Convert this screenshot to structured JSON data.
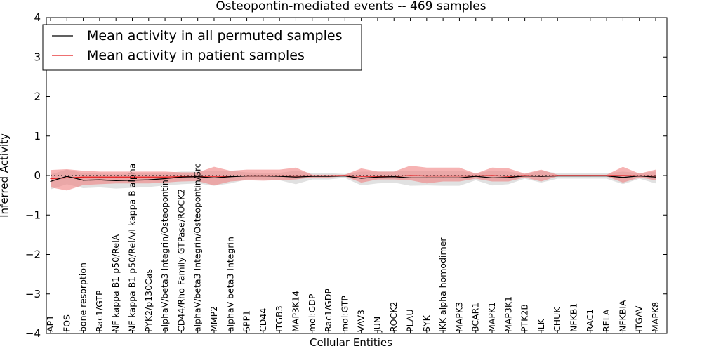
{
  "chart_data": {
    "type": "line",
    "title": "Osteopontin-mediated events -- 469 samples",
    "xlabel": "Cellular Entities",
    "ylabel": "Inferred Activity",
    "ylim": [
      -4,
      4
    ],
    "yticks": [
      -4,
      -3,
      -2,
      -1,
      0,
      1,
      2,
      3,
      4
    ],
    "ytick_labels": [
      "−4",
      "−3",
      "−2",
      "−1",
      "0",
      "1",
      "2",
      "3",
      "4"
    ],
    "grid": false,
    "legend_position": "top-left",
    "reference_line": 0,
    "categories": [
      "AP1",
      "FOS",
      "bone resorption",
      "Rac1/GTP",
      "NF kappa B1 p50/RelA",
      "NF kappa B1 p50/RelA/I kappa B alpha",
      "PYK2/p130Cas",
      "alphaV/beta3 Integrin/Osteopontin",
      "CD44/Rho Family GTPase/ROCK2",
      "alphaV/beta3 Integrin/Osteopontin/Src",
      "MMP2",
      "alphaV beta3 Integrin",
      "SPP1",
      "CD44",
      "ITGB3",
      "MAP3K14",
      "mol:GDP",
      "Rac1/GDP",
      "mol:GTP",
      "VAV3",
      "JUN",
      "ROCK2",
      "PLAU",
      "SYK",
      "IKK alpha homodimer",
      "MAPK3",
      "BCAR1",
      "MAPK1",
      "MAP3K1",
      "PTK2B",
      "ILK",
      "CHUK",
      "NFKB1",
      "RAC1",
      "RELA",
      "NFKBIA",
      "ITGAV",
      "MAPK8"
    ],
    "series": [
      {
        "name": "Mean activity in all permuted samples",
        "color": "#000000",
        "band_color": "#c8c8c8",
        "values": [
          -0.15,
          -0.02,
          -0.12,
          -0.11,
          -0.13,
          -0.12,
          -0.11,
          -0.08,
          -0.04,
          -0.03,
          -0.06,
          -0.03,
          -0.01,
          -0.01,
          -0.02,
          -0.04,
          -0.02,
          -0.02,
          -0.01,
          -0.07,
          -0.04,
          -0.03,
          -0.06,
          -0.06,
          -0.06,
          -0.06,
          -0.02,
          -0.06,
          -0.05,
          -0.01,
          -0.02,
          -0.01,
          -0.01,
          -0.01,
          -0.01,
          -0.05,
          -0.01,
          -0.04
        ],
        "lower": [
          -0.35,
          -0.22,
          -0.32,
          -0.3,
          -0.33,
          -0.31,
          -0.29,
          -0.25,
          -0.22,
          -0.2,
          -0.26,
          -0.2,
          -0.1,
          -0.1,
          -0.12,
          -0.22,
          -0.1,
          -0.1,
          -0.06,
          -0.25,
          -0.2,
          -0.18,
          -0.26,
          -0.25,
          -0.26,
          -0.26,
          -0.12,
          -0.25,
          -0.22,
          -0.08,
          -0.18,
          -0.08,
          -0.08,
          -0.08,
          -0.08,
          -0.22,
          -0.08,
          -0.2
        ],
        "upper": [
          0.03,
          0.15,
          0.06,
          0.05,
          0.04,
          0.05,
          0.06,
          0.07,
          0.1,
          0.1,
          0.12,
          0.12,
          0.08,
          0.07,
          0.07,
          0.12,
          0.06,
          0.06,
          0.04,
          0.1,
          0.1,
          0.1,
          0.12,
          0.12,
          0.12,
          0.12,
          0.06,
          0.12,
          0.1,
          0.04,
          0.12,
          0.06,
          0.06,
          0.06,
          0.06,
          0.1,
          0.06,
          0.1
        ]
      },
      {
        "name": "Mean activity in patient samples",
        "color": "#e41a1c",
        "band_color": "#f08080",
        "values": [
          -0.08,
          -0.06,
          -0.04,
          -0.04,
          -0.04,
          -0.04,
          -0.04,
          -0.04,
          -0.03,
          -0.02,
          -0.02,
          -0.02,
          -0.01,
          -0.01,
          -0.01,
          -0.01,
          -0.01,
          -0.01,
          0.0,
          -0.02,
          -0.02,
          -0.02,
          0.0,
          -0.01,
          -0.01,
          -0.01,
          -0.01,
          0.0,
          -0.02,
          0.0,
          -0.02,
          0.0,
          0.0,
          0.0,
          0.0,
          0.0,
          -0.01,
          -0.01
        ],
        "lower": [
          -0.3,
          -0.38,
          -0.24,
          -0.22,
          -0.2,
          -0.2,
          -0.2,
          -0.18,
          -0.15,
          -0.14,
          -0.25,
          -0.15,
          -0.12,
          -0.13,
          -0.12,
          -0.1,
          -0.05,
          -0.05,
          -0.02,
          -0.18,
          -0.1,
          -0.1,
          -0.12,
          -0.2,
          -0.15,
          -0.15,
          -0.08,
          -0.15,
          -0.15,
          -0.05,
          -0.15,
          -0.02,
          -0.02,
          -0.02,
          -0.02,
          -0.18,
          -0.05,
          -0.12
        ],
        "upper": [
          0.14,
          0.16,
          0.12,
          0.1,
          0.1,
          0.1,
          0.1,
          0.1,
          0.08,
          0.08,
          0.22,
          0.12,
          0.15,
          0.15,
          0.15,
          0.2,
          0.02,
          0.02,
          0.02,
          0.18,
          0.1,
          0.1,
          0.25,
          0.2,
          0.2,
          0.2,
          0.05,
          0.2,
          0.18,
          0.05,
          0.15,
          0.02,
          0.02,
          0.02,
          0.02,
          0.22,
          0.05,
          0.15
        ]
      }
    ]
  }
}
